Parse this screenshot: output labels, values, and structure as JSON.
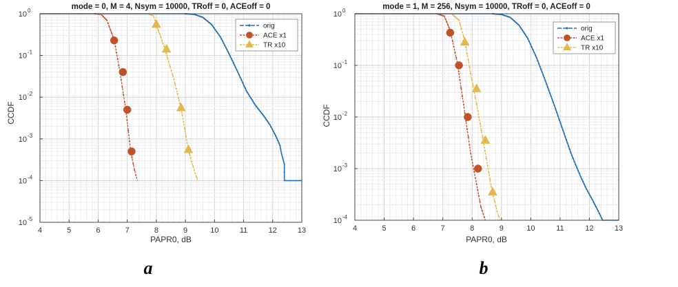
{
  "chart_data": [
    {
      "type": "line",
      "panel_label": "a",
      "title": "mode = 0, M = 4, Nsym = 10000, TRoff = 0, ACEoff = 0",
      "xlabel": "PAPR0, dB",
      "ylabel": "CCDF",
      "xlim": [
        4,
        13
      ],
      "ylim_exp": [
        -5,
        0
      ],
      "xticks": [
        4,
        5,
        6,
        7,
        8,
        9,
        10,
        11,
        12,
        13
      ],
      "yticks": [
        {
          "base": "10",
          "exp": "0"
        },
        {
          "base": "10",
          "exp": "-1"
        },
        {
          "base": "10",
          "exp": "-2"
        },
        {
          "base": "10",
          "exp": "-3"
        },
        {
          "base": "10",
          "exp": "-4"
        },
        {
          "base": "10",
          "exp": "-5"
        }
      ],
      "grid": true,
      "legend_position": "top-right",
      "series": [
        {
          "name": "orig",
          "color": "#1f6fb5",
          "marker": "dot",
          "x": [
            4,
            9.0,
            9.3,
            9.6,
            9.9,
            10.2,
            10.5,
            10.8,
            11.1,
            11.4,
            11.7,
            11.9,
            12.1,
            12.25,
            12.3,
            12.4,
            12.4,
            13
          ],
          "y": [
            1,
            1,
            0.97,
            0.82,
            0.55,
            0.28,
            0.11,
            0.04,
            0.014,
            0.0065,
            0.0035,
            0.0022,
            0.0012,
            0.0007,
            0.00045,
            0.00025,
            0.0001,
            0.0001
          ]
        },
        {
          "name": "ACE x1",
          "color": "#c0522a",
          "marker": "circle",
          "x": [
            4,
            5.9,
            6.1,
            6.3,
            6.55,
            6.75,
            6.95,
            7.12,
            7.25,
            7.35
          ],
          "y": [
            1,
            1,
            0.97,
            0.7,
            0.24,
            0.04,
            0.005,
            0.0005,
            0.00018,
            0.0001
          ],
          "markers_x": [
            6.55,
            6.85,
            7.0,
            7.15
          ],
          "markers_y": [
            0.23,
            0.04,
            0.005,
            0.0005
          ]
        },
        {
          "name": "TR x10",
          "color": "#e4b84c",
          "marker": "triangle",
          "x": [
            4,
            7.7,
            7.9,
            8.0,
            8.3,
            8.6,
            8.85,
            9.1,
            9.3,
            9.42
          ],
          "y": [
            1,
            1,
            0.9,
            0.55,
            0.14,
            0.027,
            0.0055,
            0.00055,
            0.00018,
            0.0001
          ],
          "markers_x": [
            8.0,
            8.35,
            8.85,
            9.1
          ],
          "markers_y": [
            0.55,
            0.14,
            0.0055,
            0.00055
          ]
        }
      ]
    },
    {
      "type": "line",
      "panel_label": "b",
      "title": "mode = 1, M = 256, Nsym = 10000, TRoff = 0, ACEoff = 0",
      "xlabel": "PAPR0, dB",
      "ylabel": "CCDF",
      "xlim": [
        4,
        13
      ],
      "ylim_exp": [
        -4,
        0
      ],
      "xticks": [
        4,
        5,
        6,
        7,
        8,
        9,
        10,
        11,
        12,
        13
      ],
      "yticks": [
        {
          "base": "10",
          "exp": "0"
        },
        {
          "base": "10",
          "exp": "-1"
        },
        {
          "base": "10",
          "exp": "-2"
        },
        {
          "base": "10",
          "exp": "-3"
        },
        {
          "base": "10",
          "exp": "-4"
        }
      ],
      "grid": true,
      "legend_position": "top-right",
      "series": [
        {
          "name": "orig",
          "color": "#1f6fb5",
          "marker": "dot",
          "x": [
            4,
            8.7,
            9.0,
            9.3,
            9.6,
            9.9,
            10.2,
            10.5,
            10.8,
            11.1,
            11.4,
            11.7,
            11.9,
            12.1,
            12.3,
            12.45,
            12.5,
            13
          ],
          "y": [
            1,
            1,
            0.97,
            0.85,
            0.6,
            0.33,
            0.14,
            0.05,
            0.017,
            0.0055,
            0.0018,
            0.0007,
            0.0004,
            0.00025,
            0.00015,
            0.0001,
            0.0001,
            0.0001
          ]
        },
        {
          "name": "ACE x1",
          "color": "#c0522a",
          "marker": "circle",
          "x": [
            4,
            6.8,
            7.05,
            7.25,
            7.5,
            7.75,
            7.95,
            8.15,
            8.3,
            8.45
          ],
          "y": [
            1,
            1,
            0.9,
            0.48,
            0.11,
            0.012,
            0.002,
            0.0005,
            0.00018,
            0.0001
          ],
          "markers_x": [
            7.25,
            7.55,
            7.85,
            8.2
          ],
          "markers_y": [
            0.43,
            0.1,
            0.01,
            0.001
          ]
        },
        {
          "name": "TR x10",
          "color": "#e4b84c",
          "marker": "triangle",
          "x": [
            4,
            7.3,
            7.55,
            7.75,
            7.95,
            8.15,
            8.4,
            8.65,
            8.85,
            8.95
          ],
          "y": [
            1,
            1,
            0.75,
            0.3,
            0.07,
            0.018,
            0.003,
            0.00045,
            0.00015,
            0.0001
          ],
          "markers_x": [
            7.75,
            8.15,
            8.45,
            8.7
          ],
          "markers_y": [
            0.28,
            0.035,
            0.0035,
            0.00035
          ]
        }
      ]
    }
  ]
}
